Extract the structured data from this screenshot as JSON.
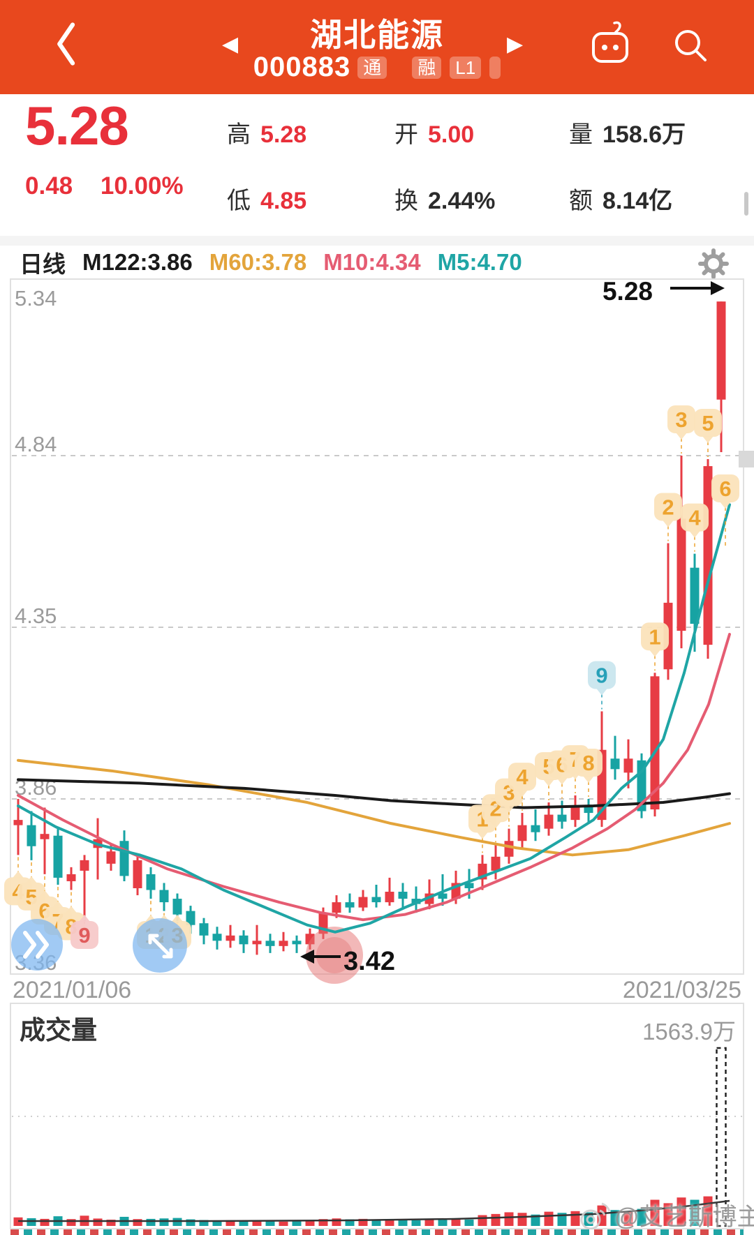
{
  "theme": {
    "accent": "#e8481e",
    "red": "#e8303a",
    "dark": "#2b2b2b"
  },
  "header": {
    "title": "湖北能源",
    "code": "000883",
    "tags": [
      "通",
      "融",
      "L1"
    ]
  },
  "quote": {
    "price": "5.28",
    "change": "0.48",
    "change_pct": "10.00%",
    "stats": [
      {
        "label": "高",
        "value": "5.28",
        "red": true
      },
      {
        "label": "开",
        "value": "5.00",
        "red": true
      },
      {
        "label": "量",
        "value": "158.6万",
        "red": false
      },
      {
        "label": "低",
        "value": "4.85",
        "red": true
      },
      {
        "label": "换",
        "value": "2.44%",
        "red": false
      },
      {
        "label": "额",
        "value": "8.14亿",
        "red": false
      }
    ]
  },
  "legend": {
    "period": "日线",
    "ma_labels": [
      {
        "text": "M122:3.86",
        "color": "#1a1a1a"
      },
      {
        "text": "M60:3.78",
        "color": "#e3a43b"
      },
      {
        "text": "M10:4.34",
        "color": "#e55c72"
      },
      {
        "text": "M5:4.70",
        "color": "#1fa5a5"
      }
    ]
  },
  "x_axis": {
    "start": "2021/01/06",
    "end": "2021/03/25"
  },
  "volume_panel": {
    "title": "成交量",
    "max_label": "1563.9万"
  },
  "watermark": {
    "text": "@艾艺斯博主"
  },
  "chart_data": {
    "type": "candlestick",
    "title": "湖北能源 000883 日线",
    "ylim": [
      3.36,
      5.34
    ],
    "y_ticks": [
      {
        "label": "5.34",
        "price": 5.34
      },
      {
        "label": "4.84",
        "price": 4.84
      },
      {
        "label": "4.35",
        "price": 4.35
      },
      {
        "label": "3.86",
        "price": 3.86
      },
      {
        "label": "3.36",
        "price": 3.36
      }
    ],
    "grid_prices": [
      4.84,
      4.35,
      3.86
    ],
    "x_labels": [
      "2021/01/06",
      "2021/03/25"
    ],
    "annotations": {
      "last_price": "5.28",
      "low_price": "3.42",
      "low_index": 21
    },
    "colors": {
      "up": "#e73c44",
      "down": "#17a3a3",
      "ma5": "#1fa5a5",
      "ma10": "#e55c72",
      "ma60": "#e3a43b",
      "ma122": "#1a1a1a",
      "badge_orange_bg": "#fbe3ba",
      "badge_orange_fg": "#eda32f",
      "badge_red_bg": "#f7c9c9",
      "badge_red_fg": "#e05b5b",
      "badge_teal_bg": "#c9e6ee",
      "badge_teal_fg": "#27a0b8"
    },
    "candles": [
      [
        3.785,
        3.8,
        3.86,
        3.7
      ],
      [
        3.785,
        3.725,
        3.825,
        3.685
      ],
      [
        3.745,
        3.76,
        3.835,
        3.645
      ],
      [
        3.755,
        3.635,
        3.775,
        3.615
      ],
      [
        3.625,
        3.645,
        3.665,
        3.6
      ],
      [
        3.655,
        3.685,
        3.7,
        3.51
      ],
      [
        3.72,
        3.745,
        3.805,
        3.63
      ],
      [
        3.675,
        3.71,
        3.73,
        3.655
      ],
      [
        3.74,
        3.64,
        3.77,
        3.625
      ],
      [
        3.605,
        3.685,
        3.7,
        3.585
      ],
      [
        3.645,
        3.6,
        3.665,
        3.575
      ],
      [
        3.6,
        3.565,
        3.62,
        3.54
      ],
      [
        3.575,
        3.53,
        3.59,
        3.505
      ],
      [
        3.54,
        3.5,
        3.555,
        3.475
      ],
      [
        3.505,
        3.47,
        3.52,
        3.445
      ],
      [
        3.475,
        3.455,
        3.495,
        3.43
      ],
      [
        3.455,
        3.47,
        3.5,
        3.435
      ],
      [
        3.47,
        3.445,
        3.485,
        3.42
      ],
      [
        3.445,
        3.455,
        3.5,
        3.415
      ],
      [
        3.455,
        3.44,
        3.475,
        3.42
      ],
      [
        3.44,
        3.455,
        3.48,
        3.425
      ],
      [
        3.455,
        3.445,
        3.47,
        3.42
      ],
      [
        3.445,
        3.475,
        3.49,
        3.43
      ],
      [
        3.475,
        3.535,
        3.55,
        3.46
      ],
      [
        3.535,
        3.565,
        3.585,
        3.52
      ],
      [
        3.565,
        3.55,
        3.59,
        3.535
      ],
      [
        3.55,
        3.58,
        3.6,
        3.54
      ],
      [
        3.58,
        3.565,
        3.615,
        3.55
      ],
      [
        3.565,
        3.595,
        3.635,
        3.555
      ],
      [
        3.595,
        3.575,
        3.62,
        3.55
      ],
      [
        3.575,
        3.56,
        3.61,
        3.535
      ],
      [
        3.56,
        3.59,
        3.63,
        3.545
      ],
      [
        3.59,
        3.575,
        3.645,
        3.555
      ],
      [
        3.575,
        3.62,
        3.655,
        3.56
      ],
      [
        3.62,
        3.605,
        3.66,
        3.575
      ],
      [
        3.63,
        3.675,
        3.7,
        3.6
      ],
      [
        3.655,
        3.695,
        3.73,
        3.63
      ],
      [
        3.695,
        3.74,
        3.775,
        3.675
      ],
      [
        3.74,
        3.785,
        3.82,
        3.72
      ],
      [
        3.785,
        3.765,
        3.83,
        3.74
      ],
      [
        3.775,
        3.815,
        3.85,
        3.755
      ],
      [
        3.815,
        3.795,
        3.855,
        3.775
      ],
      [
        3.8,
        3.84,
        3.87,
        3.78
      ],
      [
        3.84,
        3.82,
        3.86,
        3.79
      ],
      [
        3.8,
        4.0,
        4.11,
        3.78
      ],
      [
        3.975,
        3.945,
        4.04,
        3.915
      ],
      [
        3.935,
        3.975,
        4.03,
        3.89
      ],
      [
        3.97,
        3.825,
        3.99,
        3.805
      ],
      [
        3.83,
        4.21,
        4.22,
        3.81
      ],
      [
        4.23,
        4.42,
        4.59,
        4.2
      ],
      [
        4.34,
        4.66,
        4.84,
        4.29
      ],
      [
        4.52,
        4.36,
        4.56,
        4.28
      ],
      [
        4.3,
        4.81,
        4.83,
        4.26
      ],
      [
        5.0,
        5.28,
        5.28,
        4.85
      ]
    ],
    "volumes": [
      75,
      68,
      62,
      85,
      60,
      90,
      65,
      55,
      80,
      60,
      62,
      66,
      70,
      58,
      52,
      46,
      50,
      42,
      46,
      40,
      38,
      44,
      42,
      60,
      66,
      58,
      62,
      55,
      60,
      52,
      50,
      58,
      54,
      62,
      56,
      95,
      105,
      120,
      115,
      100,
      125,
      115,
      130,
      120,
      180,
      140,
      130,
      150,
      230,
      200,
      250,
      230,
      260,
      1563.9
    ],
    "volume_max": 1563.9,
    "ma122": [
      [
        26,
        3.915
      ],
      [
        200,
        3.905
      ],
      [
        350,
        3.89
      ],
      [
        480,
        3.87
      ],
      [
        560,
        3.855
      ],
      [
        650,
        3.845
      ],
      [
        750,
        3.835
      ],
      [
        850,
        3.84
      ],
      [
        950,
        3.85
      ],
      [
        1010,
        3.865
      ],
      [
        1045,
        3.875
      ]
    ],
    "ma60": [
      [
        26,
        3.97
      ],
      [
        160,
        3.94
      ],
      [
        300,
        3.9
      ],
      [
        440,
        3.85
      ],
      [
        560,
        3.79
      ],
      [
        660,
        3.75
      ],
      [
        740,
        3.72
      ],
      [
        820,
        3.7
      ],
      [
        900,
        3.715
      ],
      [
        980,
        3.755
      ],
      [
        1045,
        3.79
      ]
    ],
    "ma10": [
      [
        26,
        3.87
      ],
      [
        90,
        3.8
      ],
      [
        160,
        3.73
      ],
      [
        240,
        3.66
      ],
      [
        320,
        3.61
      ],
      [
        400,
        3.565
      ],
      [
        460,
        3.535
      ],
      [
        520,
        3.515
      ],
      [
        580,
        3.53
      ],
      [
        640,
        3.565
      ],
      [
        700,
        3.615
      ],
      [
        760,
        3.665
      ],
      [
        820,
        3.72
      ],
      [
        870,
        3.775
      ],
      [
        910,
        3.83
      ],
      [
        950,
        3.905
      ],
      [
        985,
        4.0
      ],
      [
        1015,
        4.13
      ],
      [
        1045,
        4.33
      ]
    ],
    "ma5": [
      [
        26,
        3.84
      ],
      [
        80,
        3.78
      ],
      [
        140,
        3.73
      ],
      [
        200,
        3.7
      ],
      [
        260,
        3.66
      ],
      [
        320,
        3.6
      ],
      [
        380,
        3.55
      ],
      [
        440,
        3.5
      ],
      [
        480,
        3.48
      ],
      [
        530,
        3.505
      ],
      [
        580,
        3.55
      ],
      [
        640,
        3.6
      ],
      [
        700,
        3.645
      ],
      [
        760,
        3.69
      ],
      [
        810,
        3.75
      ],
      [
        850,
        3.8
      ],
      [
        890,
        3.89
      ],
      [
        920,
        3.94
      ],
      [
        950,
        4.03
      ],
      [
        980,
        4.22
      ],
      [
        1010,
        4.45
      ],
      [
        1045,
        4.7
      ]
    ],
    "vol_ma": [
      [
        26,
        1750
      ],
      [
        300,
        1750
      ],
      [
        500,
        1749
      ],
      [
        650,
        1747
      ],
      [
        750,
        1744
      ],
      [
        850,
        1740
      ],
      [
        930,
        1734
      ],
      [
        990,
        1728
      ],
      [
        1045,
        1721
      ]
    ],
    "badges": [
      {
        "t": "4",
        "i": 0,
        "side": "below"
      },
      {
        "t": "5",
        "i": 1,
        "side": "below"
      },
      {
        "t": "6",
        "i": 2,
        "side": "below"
      },
      {
        "t": "7",
        "i": 3,
        "side": "below"
      },
      {
        "t": "8",
        "i": 4,
        "side": "below"
      },
      {
        "t": "9",
        "i": 5,
        "side": "below",
        "v": "red"
      },
      {
        "t": "1",
        "i": 10,
        "side": "below"
      },
      {
        "t": "2",
        "i": 11,
        "side": "below"
      },
      {
        "t": "3",
        "i": 12,
        "side": "below"
      },
      {
        "t": "1",
        "i": 35,
        "side": "above"
      },
      {
        "t": "2",
        "i": 36,
        "side": "above"
      },
      {
        "t": "3",
        "i": 37,
        "side": "above"
      },
      {
        "t": "4",
        "i": 38,
        "side": "above"
      },
      {
        "t": "5",
        "i": 40,
        "side": "above"
      },
      {
        "t": "6",
        "i": 41,
        "side": "above"
      },
      {
        "t": "7",
        "i": 42,
        "side": "above"
      },
      {
        "t": "8",
        "i": 43,
        "side": "above"
      },
      {
        "t": "9",
        "i": 44,
        "side": "above",
        "v": "teal"
      },
      {
        "t": "1",
        "i": 48,
        "side": "above"
      },
      {
        "t": "2",
        "i": 49,
        "side": "above"
      },
      {
        "t": "3",
        "i": 50,
        "side": "above"
      },
      {
        "t": "4",
        "i": 51,
        "side": "above"
      },
      {
        "t": "5",
        "i": 52,
        "side": "above"
      },
      {
        "t": "6",
        "i": 53,
        "side": "above",
        "y": 700,
        "dx": 6
      }
    ]
  }
}
